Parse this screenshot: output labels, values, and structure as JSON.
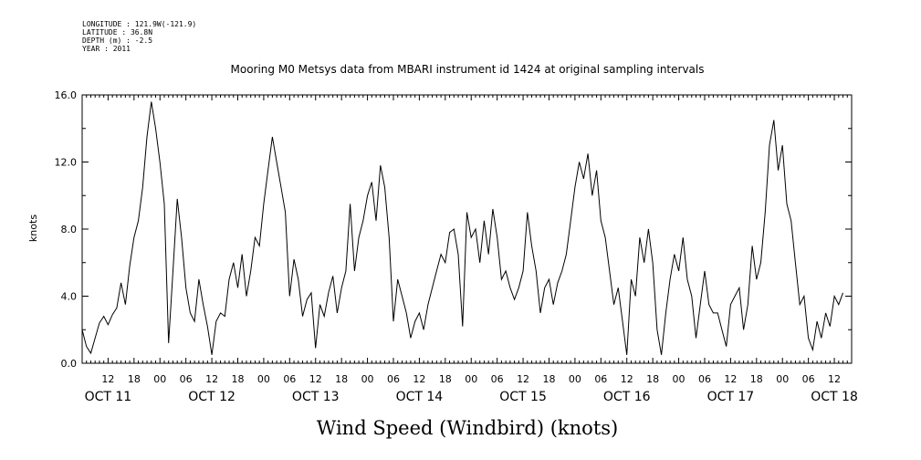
{
  "metadata": {
    "longitude": "LONGITUDE : 121.9W(-121.9)",
    "latitude": "LATITUDE : 36.8N",
    "depth": "DEPTH (m) : -2.5",
    "year": "YEAR : 2011"
  },
  "chart_data": {
    "type": "line",
    "title": "Mooring M0 Metsys data from MBARI instrument id 1424 at original sampling intervals",
    "xlabel": "Wind Speed (Windbird) (knots)",
    "ylabel": "knots",
    "ylim": [
      0,
      16
    ],
    "yticks": [
      "0.0",
      "4.0",
      "8.0",
      "12.0",
      "16.0"
    ],
    "x_range_hours": [
      6,
      184
    ],
    "x_tick_labels": [
      {
        "h": 12,
        "label": "12"
      },
      {
        "h": 18,
        "label": "18"
      },
      {
        "h": 24,
        "label": "00"
      },
      {
        "h": 30,
        "label": "06"
      },
      {
        "h": 36,
        "label": "12"
      },
      {
        "h": 42,
        "label": "18"
      },
      {
        "h": 48,
        "label": "00"
      },
      {
        "h": 54,
        "label": "06"
      },
      {
        "h": 60,
        "label": "12"
      },
      {
        "h": 66,
        "label": "18"
      },
      {
        "h": 72,
        "label": "00"
      },
      {
        "h": 78,
        "label": "06"
      },
      {
        "h": 84,
        "label": "12"
      },
      {
        "h": 90,
        "label": "18"
      },
      {
        "h": 96,
        "label": "00"
      },
      {
        "h": 102,
        "label": "06"
      },
      {
        "h": 108,
        "label": "12"
      },
      {
        "h": 114,
        "label": "18"
      },
      {
        "h": 120,
        "label": "00"
      },
      {
        "h": 126,
        "label": "06"
      },
      {
        "h": 132,
        "label": "12"
      },
      {
        "h": 138,
        "label": "18"
      },
      {
        "h": 144,
        "label": "00"
      },
      {
        "h": 150,
        "label": "06"
      },
      {
        "h": 156,
        "label": "12"
      },
      {
        "h": 162,
        "label": "18"
      },
      {
        "h": 168,
        "label": "00"
      },
      {
        "h": 174,
        "label": "06"
      },
      {
        "h": 180,
        "label": "12"
      }
    ],
    "date_labels": [
      {
        "h": 12,
        "label": "OCT 11"
      },
      {
        "h": 36,
        "label": "OCT 12"
      },
      {
        "h": 60,
        "label": "OCT 13"
      },
      {
        "h": 84,
        "label": "OCT 14"
      },
      {
        "h": 108,
        "label": "OCT 15"
      },
      {
        "h": 132,
        "label": "OCT 16"
      },
      {
        "h": 156,
        "label": "OCT 17"
      },
      {
        "h": 180,
        "label": "OCT 18"
      }
    ],
    "series": [
      {
        "color": "#000000",
        "points": [
          [
            6,
            2.0
          ],
          [
            7,
            1.0
          ],
          [
            8,
            0.6
          ],
          [
            9,
            1.5
          ],
          [
            10,
            2.4
          ],
          [
            11,
            2.8
          ],
          [
            12,
            2.3
          ],
          [
            13,
            2.9
          ],
          [
            14,
            3.3
          ],
          [
            15,
            4.8
          ],
          [
            16,
            3.5
          ],
          [
            17,
            5.8
          ],
          [
            18,
            7.5
          ],
          [
            19,
            8.5
          ],
          [
            20,
            10.5
          ],
          [
            21,
            13.5
          ],
          [
            22,
            15.6
          ],
          [
            23,
            14.0
          ],
          [
            24,
            12.0
          ],
          [
            25,
            9.5
          ],
          [
            26,
            1.2
          ],
          [
            27,
            5.5
          ],
          [
            28,
            9.8
          ],
          [
            29,
            7.5
          ],
          [
            30,
            4.5
          ],
          [
            31,
            3.0
          ],
          [
            32,
            2.5
          ],
          [
            33,
            5.0
          ],
          [
            34,
            3.5
          ],
          [
            35,
            2.2
          ],
          [
            36,
            0.5
          ],
          [
            37,
            2.5
          ],
          [
            38,
            3.0
          ],
          [
            39,
            2.8
          ],
          [
            40,
            5.0
          ],
          [
            41,
            6.0
          ],
          [
            42,
            4.5
          ],
          [
            43,
            6.5
          ],
          [
            44,
            4.0
          ],
          [
            45,
            5.5
          ],
          [
            46,
            7.5
          ],
          [
            47,
            7.0
          ],
          [
            48,
            9.5
          ],
          [
            49,
            11.5
          ],
          [
            50,
            13.5
          ],
          [
            51,
            12.0
          ],
          [
            52,
            10.5
          ],
          [
            53,
            9.0
          ],
          [
            54,
            4.0
          ],
          [
            55,
            6.2
          ],
          [
            56,
            5.0
          ],
          [
            57,
            2.8
          ],
          [
            58,
            3.8
          ],
          [
            59,
            4.2
          ],
          [
            60,
            0.9
          ],
          [
            61,
            3.5
          ],
          [
            62,
            2.8
          ],
          [
            63,
            4.2
          ],
          [
            64,
            5.2
          ],
          [
            65,
            3.0
          ],
          [
            66,
            4.5
          ],
          [
            67,
            5.5
          ],
          [
            68,
            9.5
          ],
          [
            69,
            5.5
          ],
          [
            70,
            7.5
          ],
          [
            71,
            8.5
          ],
          [
            72,
            10.0
          ],
          [
            73,
            10.8
          ],
          [
            74,
            8.5
          ],
          [
            75,
            11.8
          ],
          [
            76,
            10.5
          ],
          [
            77,
            7.5
          ],
          [
            78,
            2.5
          ],
          [
            79,
            5.0
          ],
          [
            80,
            4.0
          ],
          [
            81,
            3.0
          ],
          [
            82,
            1.5
          ],
          [
            83,
            2.5
          ],
          [
            84,
            3.0
          ],
          [
            85,
            2.0
          ],
          [
            86,
            3.5
          ],
          [
            87,
            4.5
          ],
          [
            88,
            5.5
          ],
          [
            89,
            6.5
          ],
          [
            90,
            6.0
          ],
          [
            91,
            7.8
          ],
          [
            92,
            8.0
          ],
          [
            93,
            6.5
          ],
          [
            94,
            2.2
          ],
          [
            95,
            9.0
          ],
          [
            96,
            7.5
          ],
          [
            97,
            8.0
          ],
          [
            98,
            6.0
          ],
          [
            99,
            8.5
          ],
          [
            100,
            6.5
          ],
          [
            101,
            9.2
          ],
          [
            102,
            7.5
          ],
          [
            103,
            5.0
          ],
          [
            104,
            5.5
          ],
          [
            105,
            4.5
          ],
          [
            106,
            3.8
          ],
          [
            107,
            4.5
          ],
          [
            108,
            5.5
          ],
          [
            109,
            9.0
          ],
          [
            110,
            7.0
          ],
          [
            111,
            5.5
          ],
          [
            112,
            3.0
          ],
          [
            113,
            4.5
          ],
          [
            114,
            5.0
          ],
          [
            115,
            3.5
          ],
          [
            116,
            4.8
          ],
          [
            117,
            5.5
          ],
          [
            118,
            6.5
          ],
          [
            119,
            8.5
          ],
          [
            120,
            10.5
          ],
          [
            121,
            12.0
          ],
          [
            122,
            11.0
          ],
          [
            123,
            12.5
          ],
          [
            124,
            10.0
          ],
          [
            125,
            11.5
          ],
          [
            126,
            8.5
          ],
          [
            127,
            7.5
          ],
          [
            128,
            5.5
          ],
          [
            129,
            3.5
          ],
          [
            130,
            4.5
          ],
          [
            131,
            2.5
          ],
          [
            132,
            0.5
          ],
          [
            133,
            5.0
          ],
          [
            134,
            4.0
          ],
          [
            135,
            7.5
          ],
          [
            136,
            6.0
          ],
          [
            137,
            8.0
          ],
          [
            138,
            6.0
          ],
          [
            139,
            2.0
          ],
          [
            140,
            0.5
          ],
          [
            141,
            3.0
          ],
          [
            142,
            5.0
          ],
          [
            143,
            6.5
          ],
          [
            144,
            5.5
          ],
          [
            145,
            7.5
          ],
          [
            146,
            5.0
          ],
          [
            147,
            4.0
          ],
          [
            148,
            1.5
          ],
          [
            149,
            3.5
          ],
          [
            150,
            5.5
          ],
          [
            151,
            3.5
          ],
          [
            152,
            3.0
          ],
          [
            153,
            3.0
          ],
          [
            154,
            2.0
          ],
          [
            155,
            1.0
          ],
          [
            156,
            3.5
          ],
          [
            157,
            4.0
          ],
          [
            158,
            4.5
          ],
          [
            159,
            2.0
          ],
          [
            160,
            3.5
          ],
          [
            161,
            7.0
          ],
          [
            162,
            5.0
          ],
          [
            163,
            6.0
          ],
          [
            164,
            9.0
          ],
          [
            165,
            13.0
          ],
          [
            166,
            14.5
          ],
          [
            167,
            11.5
          ],
          [
            168,
            13.0
          ],
          [
            169,
            9.5
          ],
          [
            170,
            8.5
          ],
          [
            171,
            6.0
          ],
          [
            172,
            3.5
          ],
          [
            173,
            4.0
          ],
          [
            174,
            1.5
          ],
          [
            175,
            0.8
          ],
          [
            176,
            2.5
          ],
          [
            177,
            1.5
          ],
          [
            178,
            3.0
          ],
          [
            179,
            2.2
          ],
          [
            180,
            4.0
          ],
          [
            181,
            3.5
          ],
          [
            182,
            4.2
          ]
        ]
      }
    ]
  }
}
